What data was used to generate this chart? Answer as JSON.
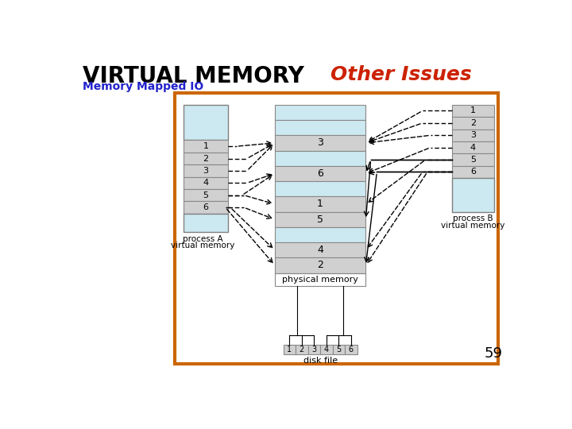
{
  "title": "VIRTUAL MEMORY",
  "subtitle": "Other Issues",
  "subtitle_color": "#cc2200",
  "section_label": "Memory Mapped IO",
  "section_label_color": "#2222cc",
  "page_number": "59",
  "bg_color": "#ffffff",
  "border_color": "#cc6600",
  "light_blue": "#cce8f0",
  "light_gray": "#d0d0d0",
  "white": "#ffffff",
  "phys_cells": [
    [
      "blue",
      ""
    ],
    [
      "blue",
      ""
    ],
    [
      "gray",
      "3"
    ],
    [
      "blue",
      ""
    ],
    [
      "gray",
      "6"
    ],
    [
      "blue",
      ""
    ],
    [
      "gray",
      "1"
    ],
    [
      "gray",
      "5"
    ],
    [
      "blue",
      ""
    ],
    [
      "gray",
      "4"
    ],
    [
      "gray",
      "2"
    ]
  ],
  "pA_cells": [
    "1",
    "2",
    "3",
    "4",
    "5",
    "6"
  ],
  "pB_cells": [
    "1",
    "2",
    "3",
    "4",
    "5",
    "6"
  ],
  "disk_labels": [
    "1",
    "2",
    "3",
    "4",
    "5",
    "6"
  ]
}
